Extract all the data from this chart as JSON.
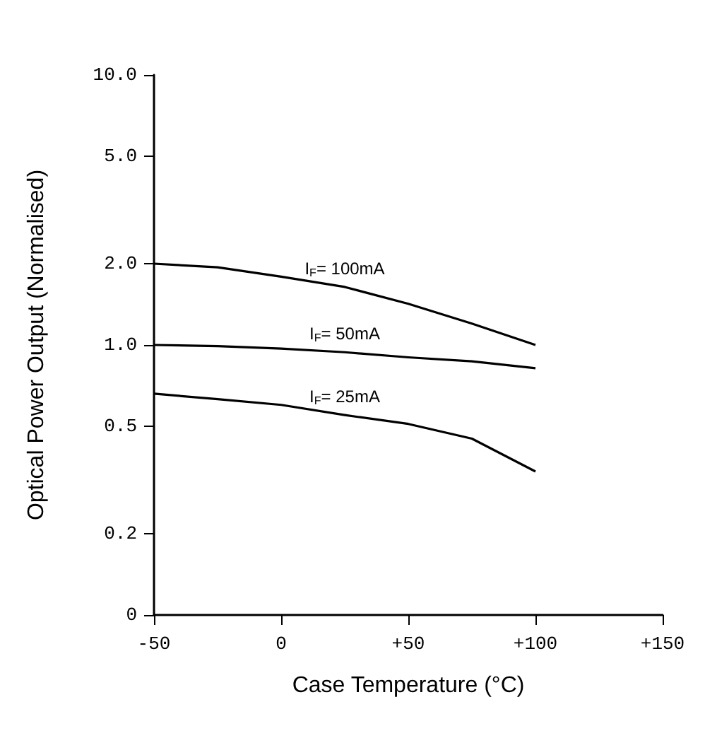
{
  "chart_data": {
    "type": "line",
    "xlabel": "Case Temperature (°C)",
    "ylabel": "Optical Power Output (Normalised)",
    "x": [
      -50,
      -25,
      0,
      25,
      50,
      75,
      100
    ],
    "series": [
      {
        "name": "I$_{F}$= 100mA",
        "color": "#000000",
        "values": [
          2.0,
          1.94,
          1.79,
          1.64,
          1.42,
          1.2,
          1.0
        ]
      },
      {
        "name": "I$_{F}$= 50mA",
        "color": "#000000",
        "values": [
          1.0,
          0.99,
          0.97,
          0.94,
          0.9,
          0.87,
          0.82
        ]
      },
      {
        "name": "I$_{F}$= 25mA",
        "color": "#000000",
        "values": [
          0.66,
          0.63,
          0.6,
          0.55,
          0.51,
          0.45,
          0.34
        ]
      }
    ],
    "xlim": [
      -50,
      150
    ],
    "xticks": [
      -50,
      0,
      {
        "value": 50,
        "label": "+50"
      },
      {
        "value": 100,
        "label": "+100"
      },
      {
        "value": 150,
        "label": "+150"
      }
    ],
    "ylim": [
      0.1,
      10
    ],
    "yticks": [
      {
        "value": 10,
        "label": "10.0"
      },
      {
        "value": 5,
        "label": "5.0"
      },
      {
        "value": 2,
        "label": "2.0"
      },
      {
        "value": 1,
        "label": "1.0"
      },
      0.5,
      0.2,
      {
        "value": 0.1,
        "label": "0"
      }
    ],
    "log": "y",
    "grid": false,
    "legend": false,
    "marker": "none",
    "line_style": "solid"
  }
}
